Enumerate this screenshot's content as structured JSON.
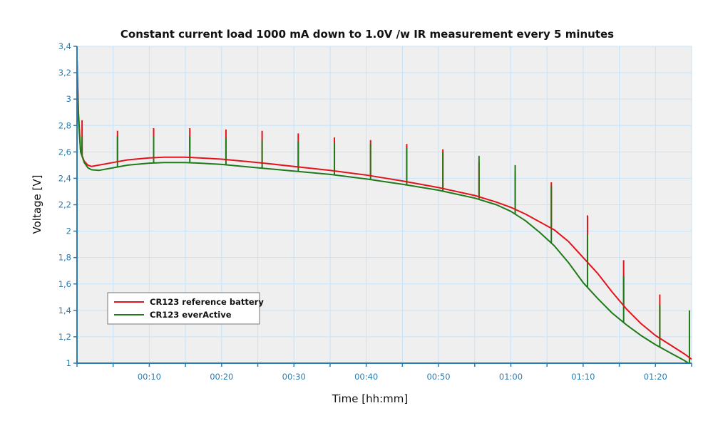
{
  "chart_data": {
    "type": "line",
    "title": "Constant current load 1000 mA down to 1.0V /w IR measurement every 5 minutes",
    "xlabel": "Time [hh:mm]",
    "ylabel": "Voltage [V]",
    "xlim": [
      0,
      85
    ],
    "ylim": [
      1,
      3.4
    ],
    "x_unit": "minutes",
    "x_ticks": [
      {
        "value": 10,
        "label": "00:10"
      },
      {
        "value": 20,
        "label": "00:20"
      },
      {
        "value": 30,
        "label": "00:30"
      },
      {
        "value": 40,
        "label": "00:40"
      },
      {
        "value": 50,
        "label": "00:50"
      },
      {
        "value": 60,
        "label": "01:00"
      },
      {
        "value": 70,
        "label": "01:10"
      },
      {
        "value": 80,
        "label": "01:20"
      }
    ],
    "x_minor_ticks": [
      0,
      5,
      15,
      25,
      35,
      45,
      55,
      65,
      75,
      85
    ],
    "y_ticks": [
      {
        "value": 1.0,
        "label": "1"
      },
      {
        "value": 1.2,
        "label": "1,2"
      },
      {
        "value": 1.4,
        "label": "1,4"
      },
      {
        "value": 1.6,
        "label": "1,6"
      },
      {
        "value": 1.8,
        "label": "1,8"
      },
      {
        "value": 2.0,
        "label": "2"
      },
      {
        "value": 2.2,
        "label": "2,2"
      },
      {
        "value": 2.4,
        "label": "2,4"
      },
      {
        "value": 2.6,
        "label": "2,6"
      },
      {
        "value": 2.8,
        "label": "2,8"
      },
      {
        "value": 3.0,
        "label": "3"
      },
      {
        "value": 3.2,
        "label": "3,2"
      },
      {
        "value": 3.4,
        "label": "3,4"
      }
    ],
    "grid": true,
    "legend_position": "bottom-left",
    "series": [
      {
        "name": "CR123 reference battery",
        "color": "#e3121b",
        "points": [
          [
            0,
            3.3
          ],
          [
            0.2,
            2.9
          ],
          [
            0.5,
            2.6
          ],
          [
            1,
            2.53
          ],
          [
            1.5,
            2.5
          ],
          [
            2,
            2.49
          ],
          [
            3,
            2.5
          ],
          [
            5,
            2.52
          ],
          [
            7,
            2.54
          ],
          [
            10,
            2.555
          ],
          [
            12,
            2.56
          ],
          [
            15,
            2.56
          ],
          [
            17,
            2.555
          ],
          [
            20,
            2.545
          ],
          [
            25,
            2.52
          ],
          [
            30,
            2.49
          ],
          [
            35,
            2.46
          ],
          [
            40,
            2.425
          ],
          [
            45,
            2.38
          ],
          [
            50,
            2.33
          ],
          [
            55,
            2.27
          ],
          [
            58,
            2.22
          ],
          [
            60,
            2.18
          ],
          [
            62,
            2.13
          ],
          [
            64,
            2.07
          ],
          [
            66,
            2.01
          ],
          [
            68,
            1.92
          ],
          [
            70,
            1.8
          ],
          [
            72,
            1.68
          ],
          [
            74,
            1.54
          ],
          [
            76,
            1.41
          ],
          [
            78,
            1.3
          ],
          [
            80,
            1.21
          ],
          [
            82,
            1.14
          ],
          [
            84,
            1.07
          ],
          [
            85,
            1.03
          ]
        ],
        "spikes": [
          [
            0.7,
            2.84
          ],
          [
            5.6,
            2.76
          ],
          [
            10.6,
            2.78
          ],
          [
            15.6,
            2.78
          ],
          [
            20.6,
            2.77
          ],
          [
            25.6,
            2.76
          ],
          [
            30.6,
            2.74
          ],
          [
            35.6,
            2.71
          ],
          [
            40.6,
            2.69
          ],
          [
            45.6,
            2.66
          ],
          [
            50.6,
            2.62
          ],
          [
            55.6,
            2.52
          ],
          [
            60.6,
            2.45
          ],
          [
            65.6,
            2.37
          ],
          [
            70.6,
            2.12
          ],
          [
            75.6,
            1.78
          ],
          [
            80.6,
            1.52
          ]
        ]
      },
      {
        "name": "CR123 everActive",
        "color": "#1f7a1a",
        "points": [
          [
            0,
            3.3
          ],
          [
            0.2,
            2.85
          ],
          [
            0.5,
            2.6
          ],
          [
            1,
            2.52
          ],
          [
            1.5,
            2.48
          ],
          [
            2,
            2.465
          ],
          [
            3,
            2.46
          ],
          [
            5,
            2.48
          ],
          [
            7,
            2.5
          ],
          [
            10,
            2.515
          ],
          [
            12,
            2.52
          ],
          [
            15,
            2.52
          ],
          [
            17,
            2.515
          ],
          [
            20,
            2.505
          ],
          [
            25,
            2.48
          ],
          [
            30,
            2.455
          ],
          [
            35,
            2.43
          ],
          [
            40,
            2.395
          ],
          [
            45,
            2.355
          ],
          [
            50,
            2.31
          ],
          [
            55,
            2.25
          ],
          [
            58,
            2.2
          ],
          [
            60,
            2.15
          ],
          [
            62,
            2.08
          ],
          [
            64,
            1.99
          ],
          [
            66,
            1.89
          ],
          [
            68,
            1.76
          ],
          [
            70,
            1.61
          ],
          [
            72,
            1.49
          ],
          [
            74,
            1.38
          ],
          [
            76,
            1.29
          ],
          [
            78,
            1.21
          ],
          [
            80,
            1.14
          ],
          [
            82,
            1.08
          ],
          [
            84,
            1.02
          ],
          [
            84.6,
            1.0
          ]
        ],
        "spikes": [
          [
            0.7,
            2.72
          ],
          [
            5.6,
            2.72
          ],
          [
            10.6,
            2.72
          ],
          [
            15.6,
            2.72
          ],
          [
            20.6,
            2.71
          ],
          [
            25.6,
            2.69
          ],
          [
            30.6,
            2.68
          ],
          [
            35.6,
            2.67
          ],
          [
            40.6,
            2.66
          ],
          [
            45.6,
            2.63
          ],
          [
            50.6,
            2.6
          ],
          [
            55.6,
            2.57
          ],
          [
            60.6,
            2.5
          ],
          [
            65.6,
            2.34
          ],
          [
            70.6,
            1.97
          ],
          [
            75.6,
            1.66
          ],
          [
            80.6,
            1.44
          ],
          [
            84.7,
            1.4
          ]
        ]
      }
    ]
  }
}
